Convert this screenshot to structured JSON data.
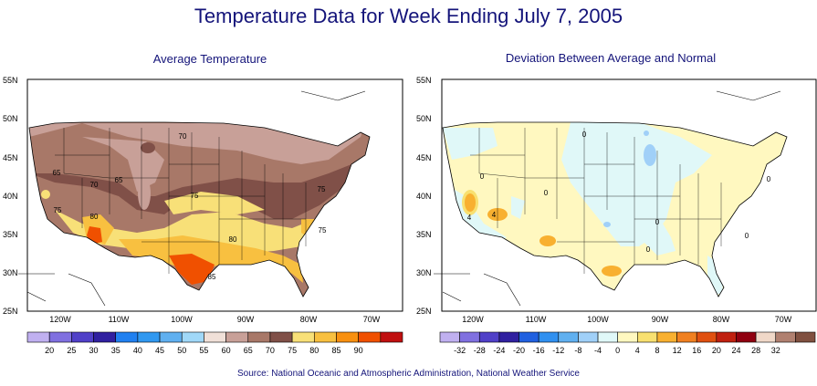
{
  "title": "Temperature Data for Week Ending July 7, 2005",
  "source": "Source:  National Oceanic and Atmospheric Administration, National Weather Service",
  "panels": [
    {
      "title": "Average Temperature",
      "lat_labels": [
        "55N",
        "50N",
        "45N",
        "40N",
        "35N",
        "30N",
        "25N"
      ],
      "lon_labels": [
        "120W",
        "110W",
        "100W",
        "90W",
        "80W",
        "70W"
      ],
      "contour_labels": [
        "65",
        "70",
        "70",
        "65",
        "75",
        "80",
        "75",
        "75",
        "80",
        "75",
        "85"
      ],
      "legend": {
        "colors": [
          "#c0b0f0",
          "#8070e0",
          "#5040c8",
          "#3020a0",
          "#2080f0",
          "#3098f0",
          "#60b0f0",
          "#a0d8f8",
          "#f0e0d8",
          "#c8a098",
          "#a87868",
          "#805048",
          "#f8e078",
          "#f8c040",
          "#f89010",
          "#f05000",
          "#c01010"
        ],
        "labels": [
          "20",
          "25",
          "30",
          "35",
          "40",
          "45",
          "50",
          "55",
          "60",
          "65",
          "70",
          "75",
          "80",
          "85",
          "90"
        ]
      }
    },
    {
      "title": "Deviation Between Average and Normal",
      "lat_labels": [
        "55N",
        "50N",
        "45N",
        "40N",
        "35N",
        "30N",
        "25N"
      ],
      "lon_labels": [
        "120W",
        "110W",
        "100W",
        "90W",
        "80W",
        "70W"
      ],
      "contour_labels": [
        "4",
        "4",
        "0",
        "0",
        "0",
        "0",
        "0",
        "0",
        "0"
      ],
      "legend": {
        "colors": [
          "#c0b0f0",
          "#8070e0",
          "#5040c8",
          "#3020a0",
          "#2060e0",
          "#3090f0",
          "#60b0f0",
          "#a0d0f8",
          "#e0f8f8",
          "#fff8c0",
          "#f8e070",
          "#f8b030",
          "#f08020",
          "#e05010",
          "#c02010",
          "#900010",
          "#f0d8c8",
          "#b08070",
          "#805040"
        ],
        "labels": [
          "-32",
          "-28",
          "-24",
          "-20",
          "-16",
          "-12",
          "-8",
          "-4",
          "0",
          "4",
          "8",
          "12",
          "16",
          "20",
          "24",
          "28",
          "32"
        ]
      }
    }
  ]
}
